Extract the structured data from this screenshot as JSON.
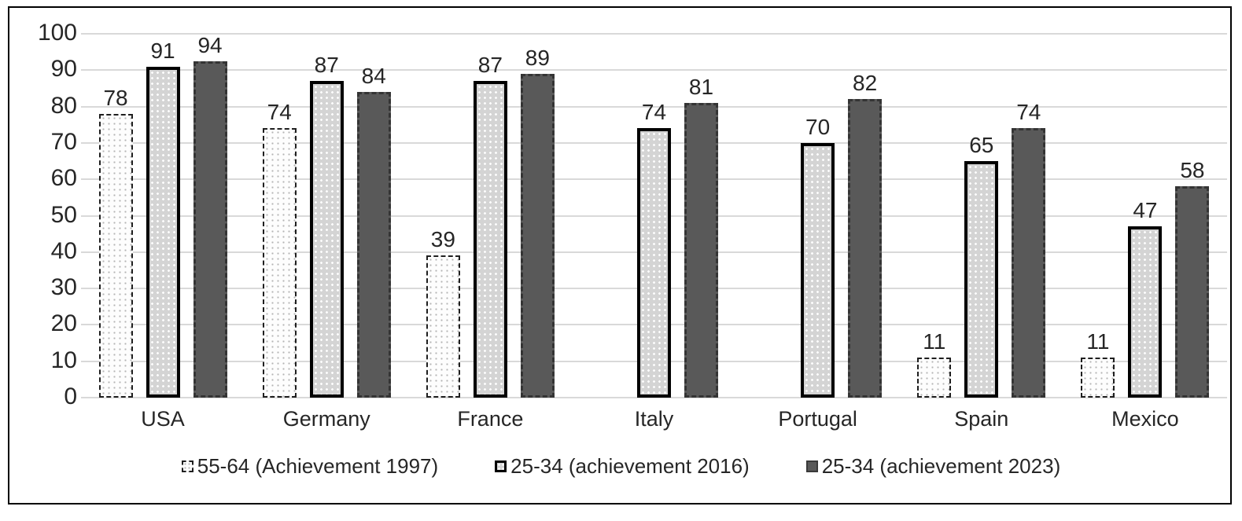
{
  "chart_data": {
    "type": "bar",
    "title": "",
    "xlabel": "",
    "ylabel": "",
    "categories": [
      "USA",
      "Germany",
      "France",
      "Italy",
      "Portugal",
      "Spain",
      "Mexico"
    ],
    "series": [
      {
        "name": "55-64 (Achievement 1997)",
        "style": "light-dotted-dashed-border",
        "values": [
          78,
          74,
          39,
          null,
          null,
          11,
          11
        ]
      },
      {
        "name": "25-34 (achievement 2016)",
        "style": "gray-dotted-solid-border",
        "values": [
          91,
          87,
          87,
          74,
          70,
          65,
          47
        ]
      },
      {
        "name": "25-34 (achievement 2023)",
        "style": "dark-gray-dashed-border",
        "values": [
          94,
          84,
          89,
          81,
          82,
          74,
          58
        ]
      }
    ],
    "ylim": [
      0,
      100
    ],
    "yticks": [
      0,
      10,
      20,
      30,
      40,
      50,
      60,
      70,
      80,
      90,
      100
    ],
    "grid": "horizontal",
    "gridline_on": true,
    "data_labels": true,
    "legend_position": "bottom"
  },
  "colors": {
    "background": "#ffffff",
    "frame_border": "#000000",
    "gridline": "#d9d9d9",
    "text": "#262626",
    "series1_fill": "#fdfdfd",
    "series1_dots": "#b3b3b3",
    "series1_border": "#1f1f1f",
    "series2_fill": "#d4d4d4",
    "series2_dots": "#ffffff",
    "series2_border": "#000000",
    "series3_fill": "#595959",
    "series3_border": "#343434"
  }
}
